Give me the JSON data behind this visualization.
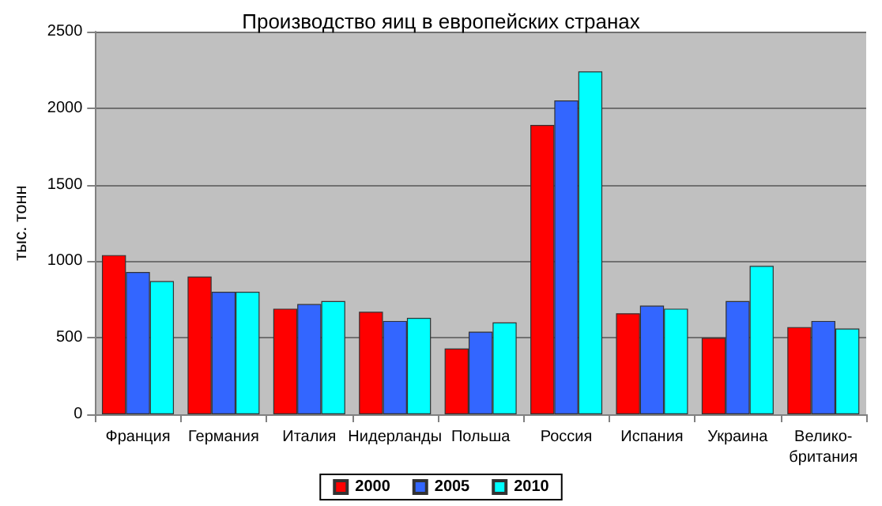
{
  "chart_data": {
    "type": "bar",
    "title": "Производство яиц в европейских странах",
    "ylabel": "тыс. тонн",
    "categories": [
      "Франция",
      "Германия",
      "Италия",
      "Нидерланды",
      "Польша",
      "Россия",
      "Испания",
      "Украина",
      "Велико-\nбритания"
    ],
    "series": [
      {
        "name": "2000",
        "color": "#ff0000",
        "values": [
          1040,
          900,
          690,
          670,
          430,
          1890,
          660,
          500,
          570
        ]
      },
      {
        "name": "2005",
        "color": "#3366ff",
        "values": [
          930,
          800,
          720,
          610,
          540,
          2050,
          710,
          740,
          610
        ]
      },
      {
        "name": "2010",
        "color": "#00ffff",
        "values": [
          870,
          800,
          740,
          630,
          600,
          2240,
          690,
          970,
          560
        ]
      }
    ],
    "ylim": [
      0,
      2500
    ],
    "yticks": [
      0,
      500,
      1000,
      1500,
      2000,
      2500
    ],
    "grid": "y",
    "legend": "bottom"
  }
}
